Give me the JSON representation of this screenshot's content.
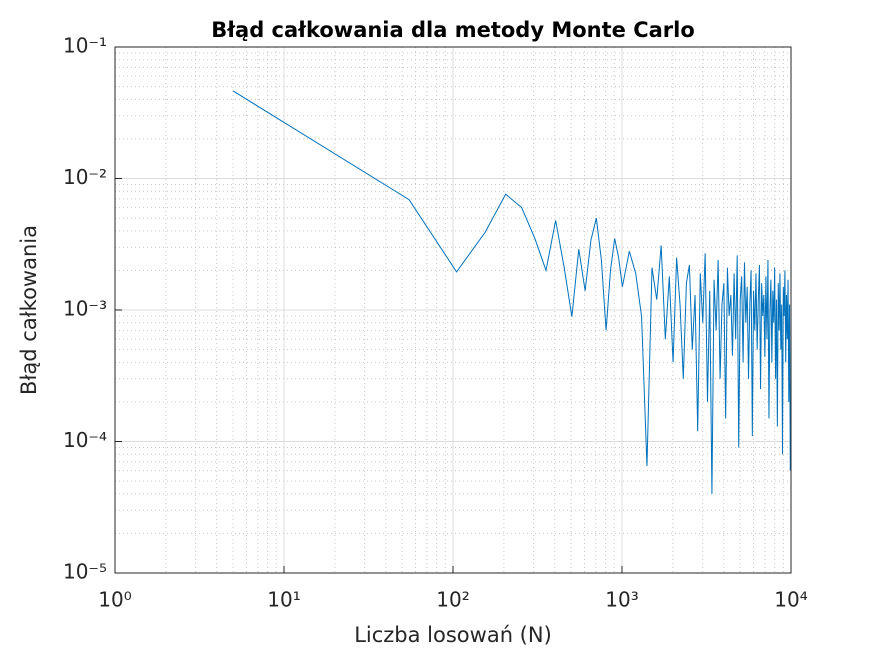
{
  "chart_data": {
    "type": "line",
    "title": "Błąd całkowania dla metody Monte Carlo",
    "x_label": "Liczba losowań (N)",
    "y_label": "Błąd całkowania",
    "x": [
      5,
      55,
      105,
      155,
      205,
      255,
      305,
      355,
      405,
      455,
      505,
      555,
      605,
      655,
      705,
      755,
      805,
      855,
      905,
      955,
      1005,
      1105,
      1205,
      1305,
      1405,
      1505,
      1605,
      1705,
      1805,
      1905,
      2005,
      2105,
      2205,
      2305,
      2405,
      2505,
      2605,
      2705,
      2805,
      2905,
      3005,
      3105,
      3205,
      3305,
      3405,
      3505,
      3605,
      3705,
      3805,
      3905,
      4005,
      4105,
      4205,
      4305,
      4405,
      4505,
      4605,
      4705,
      4805,
      4905,
      5005,
      5105,
      5205,
      5305,
      5405,
      5505,
      5605,
      5705,
      5805,
      5905,
      6005,
      6105,
      6205,
      6305,
      6405,
      6505,
      6605,
      6705,
      6805,
      6905,
      7005,
      7105,
      7205,
      7305,
      7405,
      7505,
      7605,
      7705,
      7805,
      7905,
      8005,
      8105,
      8205,
      8305,
      8405,
      8505,
      8605,
      8705,
      8805,
      8905,
      9005,
      9105,
      9205,
      9305,
      9405,
      9505,
      9605,
      9705,
      9805,
      9905
    ],
    "series": [
      {
        "color": "#0072bd",
        "values": [
          0.0463,
          0.0069,
          0.00195,
          0.0039,
          0.0076,
          0.006,
          0.0035,
          0.002,
          0.0048,
          0.0021,
          0.00089,
          0.0029,
          0.0014,
          0.0034,
          0.005,
          0.0024,
          0.0007,
          0.002,
          0.0035,
          0.0025,
          0.0015,
          0.0028,
          0.0019,
          0.0009,
          6.5e-05,
          0.0021,
          0.0012,
          0.0031,
          0.0006,
          0.0018,
          0.0004,
          0.0025,
          0.0011,
          0.0003,
          0.0016,
          0.0022,
          0.0005,
          0.0013,
          0.00012,
          0.0019,
          0.0008,
          0.0027,
          0.0002,
          0.0014,
          4e-05,
          0.0017,
          0.0007,
          0.0024,
          0.0003,
          0.0011,
          0.0016,
          0.00015,
          0.0021,
          0.0009,
          0.0013,
          0.00045,
          0.0019,
          0.0006,
          0.0026,
          9e-05,
          0.0012,
          0.0018,
          0.0004,
          0.0023,
          0.0008,
          0.0015,
          0.0003,
          0.0011,
          0.002,
          0.00011,
          0.0014,
          0.0007,
          0.0019,
          0.0005,
          0.0012,
          0.0022,
          0.00025,
          0.0016,
          0.0009,
          0.0013,
          0.00044,
          0.0018,
          0.0006,
          0.0024,
          0.00015,
          0.001,
          0.0017,
          0.0004,
          0.0014,
          0.0008,
          0.0021,
          0.0003,
          0.0012,
          0.00013,
          0.0016,
          0.0007,
          0.0019,
          0.0005,
          0.0011,
          8e-05,
          0.0015,
          0.0009,
          0.002,
          0.0004,
          0.0013,
          0.0006,
          0.0017,
          0.0002,
          0.0011,
          6e-05
        ]
      }
    ],
    "xscale": "log",
    "yscale": "log",
    "xlim": [
      1,
      10000
    ],
    "ylim": [
      1e-05,
      0.1
    ],
    "xticks": [
      {
        "value": 1,
        "label": "10⁰"
      },
      {
        "value": 10,
        "label": "10¹"
      },
      {
        "value": 100,
        "label": "10²"
      },
      {
        "value": 1000,
        "label": "10³"
      },
      {
        "value": 10000,
        "label": "10⁴"
      }
    ],
    "yticks": [
      {
        "value": 1e-05,
        "label": "10⁻⁵"
      },
      {
        "value": 0.0001,
        "label": "10⁻⁴"
      },
      {
        "value": 0.001,
        "label": "10⁻³"
      },
      {
        "value": 0.01,
        "label": "10⁻²"
      },
      {
        "value": 0.1,
        "label": "10⁻¹"
      }
    ],
    "grid": true,
    "minor_grid": true
  }
}
